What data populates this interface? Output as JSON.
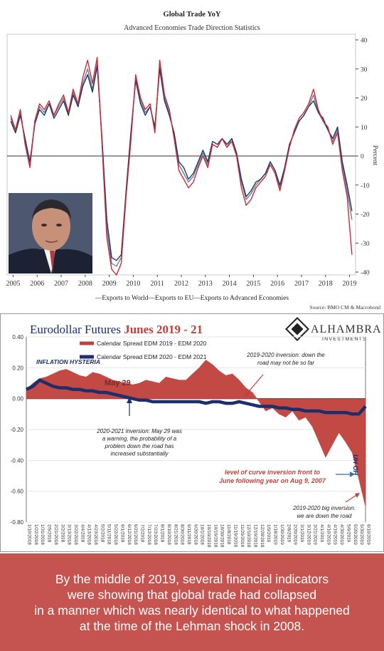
{
  "charts_meta": {
    "top_title": "Global Trade YoY",
    "top_subtitle": "Advanced Economies Trade Direction Statistics",
    "top_source": "Source: BMO CM & Macrobond",
    "top_legend": "—Exports to World—Exports to EU—Exports to Advanced Economies",
    "top_y_axis_label": "Percent",
    "bottom_title_main": "Eurodollar Futures ",
    "bottom_title_accent": "Junes 2019 - 21",
    "brand_name": "ALHAMBRA",
    "brand_sub": "INVESTMENTS"
  },
  "chart_data": [
    {
      "type": "line",
      "title": "Global Trade YoY",
      "subtitle": "Advanced Economies Trade Direction Statistics",
      "ylabel": "Percent",
      "ylim": [
        -40,
        40
      ],
      "y_ticks": [
        40,
        30,
        20,
        10,
        0,
        -10,
        -20,
        -30,
        -40
      ],
      "x_ticks": [
        "2005",
        "2006",
        "2007",
        "2008",
        "2009",
        "2010",
        "2011",
        "2012",
        "2013",
        "2014",
        "2015",
        "2016",
        "2017",
        "2018",
        "2019"
      ],
      "x": [
        2004.9,
        2005.1,
        2005.3,
        2005.5,
        2005.7,
        2005.9,
        2006.1,
        2006.3,
        2006.5,
        2006.7,
        2006.9,
        2007.1,
        2007.3,
        2007.5,
        2007.7,
        2007.9,
        2008.1,
        2008.3,
        2008.5,
        2008.7,
        2008.9,
        2009.1,
        2009.3,
        2009.5,
        2009.7,
        2009.9,
        2010.1,
        2010.3,
        2010.5,
        2010.7,
        2010.9,
        2011.1,
        2011.3,
        2011.5,
        2011.7,
        2011.9,
        2012.1,
        2012.3,
        2012.5,
        2012.7,
        2012.9,
        2013.1,
        2013.3,
        2013.5,
        2013.7,
        2013.9,
        2014.1,
        2014.3,
        2014.5,
        2014.7,
        2014.9,
        2015.1,
        2015.3,
        2015.5,
        2015.7,
        2015.9,
        2016.1,
        2016.3,
        2016.5,
        2016.7,
        2016.9,
        2017.1,
        2017.3,
        2017.5,
        2017.7,
        2017.9,
        2018.1,
        2018.3,
        2018.5,
        2018.7,
        2018.9,
        2019.1
      ],
      "series": [
        {
          "name": "Exports to World",
          "color": "#1c3a66",
          "values": [
            12,
            8,
            14,
            6,
            -2,
            11,
            16,
            14,
            18,
            13,
            16,
            19,
            14,
            21,
            17,
            24,
            28,
            22,
            31,
            6,
            -22,
            -35,
            -36,
            -34,
            -12,
            8,
            26,
            18,
            14,
            17,
            10,
            30,
            19,
            14,
            8,
            -2,
            -4,
            -8,
            -6,
            -2,
            2,
            -2,
            5,
            4,
            6,
            4,
            6,
            1,
            -8,
            -14,
            -12,
            -9,
            -8,
            -6,
            -2,
            -5,
            -10,
            -4,
            4,
            8,
            12,
            14,
            17,
            19,
            15,
            13,
            9,
            6,
            10,
            -2,
            -10,
            -19
          ]
        },
        {
          "name": "Exports to EU",
          "color": "#cc2a36",
          "values": [
            14,
            9,
            16,
            4,
            -4,
            12,
            18,
            16,
            19,
            14,
            18,
            21,
            15,
            23,
            18,
            27,
            33,
            25,
            34,
            4,
            -28,
            -39,
            -41,
            -37,
            -14,
            5,
            28,
            20,
            16,
            18,
            8,
            33,
            21,
            16,
            6,
            -5,
            -8,
            -11,
            -9,
            -4,
            0,
            -4,
            4,
            3,
            6,
            3,
            5,
            0,
            -11,
            -17,
            -15,
            -11,
            -9,
            -7,
            -3,
            -6,
            -12,
            -5,
            3,
            9,
            13,
            15,
            18,
            23,
            16,
            12,
            10,
            4,
            8,
            -5,
            -14,
            -34
          ]
        },
        {
          "name": "Exports to Advanced Economies",
          "color": "#6a7f96",
          "values": [
            13,
            8,
            15,
            5,
            -3,
            11,
            17,
            15,
            18,
            14,
            17,
            20,
            14,
            22,
            17,
            25,
            30,
            23,
            32,
            5,
            -25,
            -37,
            -38,
            -35,
            -13,
            7,
            27,
            19,
            15,
            17,
            9,
            31,
            20,
            15,
            7,
            -3,
            -6,
            -9,
            -7,
            -3,
            1,
            -3,
            4,
            3,
            6,
            3,
            6,
            1,
            -9,
            -15,
            -13,
            -10,
            -8,
            -6,
            -2,
            -5,
            -11,
            -4,
            4,
            8,
            12,
            14,
            17,
            21,
            15,
            12,
            9,
            5,
            9,
            -3,
            -12,
            -22
          ]
        }
      ],
      "source": "Source: BMO CM & Macrobond"
    },
    {
      "type": "area",
      "title": "Eurodollar Futures Junes 2019 - 21",
      "ylim": [
        -0.8,
        0.4
      ],
      "y_ticks": [
        "0.40",
        "0.20",
        "0.00",
        "-0.20",
        "-0.40",
        "-0.60",
        "-0.80"
      ],
      "categories": [
        "1/10/2018",
        "1/22/2018",
        "1/31/2018",
        "2/9/2018",
        "2/21/2018",
        "3/2/2018",
        "3/13/2018",
        "3/22/2018",
        "4/4/2018",
        "4/13/2018",
        "4/23/2018",
        "5/2/2018",
        "5/11/2018",
        "5/22/2018",
        "6/1/2018",
        "6/12/2018",
        "6/21/2018",
        "7/2/2018",
        "7/12/2018",
        "7/23/2018",
        "8/1/2018",
        "8/10/2018",
        "8/21/2018",
        "8/30/2018",
        "9/11/2018",
        "9/20/2018",
        "10/1/2018",
        "10/10/2018",
        "10/19/2018",
        "10/30/2018",
        "11/8/2018",
        "11/19/2018",
        "11/29/2018",
        "12/10/2018",
        "12/19/2018",
        "12/28/2018",
        "1/9/2019",
        "1/18/2019",
        "1/30/2019",
        "2/8/2019",
        "2/20/2019",
        "3/1/2019",
        "3/12/2019",
        "3/21/2019",
        "4/1/2019",
        "4/10/2019",
        "4/19/2019",
        "4/30/2019",
        "5/9/2019",
        "5/20/2019",
        "5/30/2019",
        "6/10/2019"
      ],
      "series": [
        {
          "name": "Calendar Spread EDM 2019 - EDM 2020",
          "color": "#c0403b",
          "kind": "area",
          "values": [
            0.06,
            0.1,
            0.13,
            0.14,
            0.16,
            0.18,
            0.19,
            0.17,
            0.15,
            0.14,
            0.17,
            0.16,
            0.14,
            0.12,
            0.11,
            0.1,
            0.09,
            0.1,
            0.12,
            0.11,
            0.1,
            0.14,
            0.13,
            0.12,
            0.12,
            0.16,
            0.2,
            0.25,
            0.22,
            0.18,
            0.15,
            0.16,
            0.12,
            0.07,
            0.04,
            -0.02,
            -0.08,
            -0.06,
            -0.1,
            -0.12,
            -0.08,
            -0.14,
            -0.12,
            -0.18,
            -0.28,
            -0.38,
            -0.3,
            -0.22,
            -0.28,
            -0.35,
            -0.52,
            -0.7
          ]
        },
        {
          "name": "Calendar Spread EDM 2020 - EDM 2021",
          "color": "#1c2e6b",
          "kind": "line",
          "values": [
            0.06,
            0.08,
            0.12,
            0.1,
            0.08,
            0.07,
            0.07,
            0.06,
            0.06,
            0.05,
            0.05,
            0.04,
            0.04,
            0.03,
            0.02,
            0.01,
            0.0,
            -0.01,
            -0.01,
            -0.02,
            -0.02,
            -0.02,
            -0.02,
            -0.02,
            -0.02,
            -0.02,
            -0.02,
            -0.03,
            -0.02,
            -0.02,
            -0.03,
            -0.03,
            -0.02,
            -0.03,
            -0.04,
            -0.05,
            -0.05,
            -0.05,
            -0.06,
            -0.06,
            -0.07,
            -0.07,
            -0.08,
            -0.08,
            -0.08,
            -0.09,
            -0.09,
            -0.09,
            -0.09,
            -0.1,
            -0.1,
            -0.05
          ]
        }
      ],
      "annotations": {
        "inflation": "INFLATION HYSTERIA",
        "may29": "May 29",
        "inv_2019": "2019-2020 inversion: down the\nroad may not be so far",
        "inv_2020": "2020-2021 inversion: May 29 was\na warning, the probability of a\nproblem down the road has\nincreased substantially",
        "front": "level of curve inversion front to\nJune following year on Aug 9, 2007",
        "uh_oh": "UH OH",
        "big": "2019-2020 big inversion:\nwe are down the road"
      }
    }
  ],
  "caption": "By the middle of 2019, several financial indicators\nwere showing that global trade had collapsed\nin a manner which was nearly identical to what happened\nat the time of the Lehman shock in 2008."
}
